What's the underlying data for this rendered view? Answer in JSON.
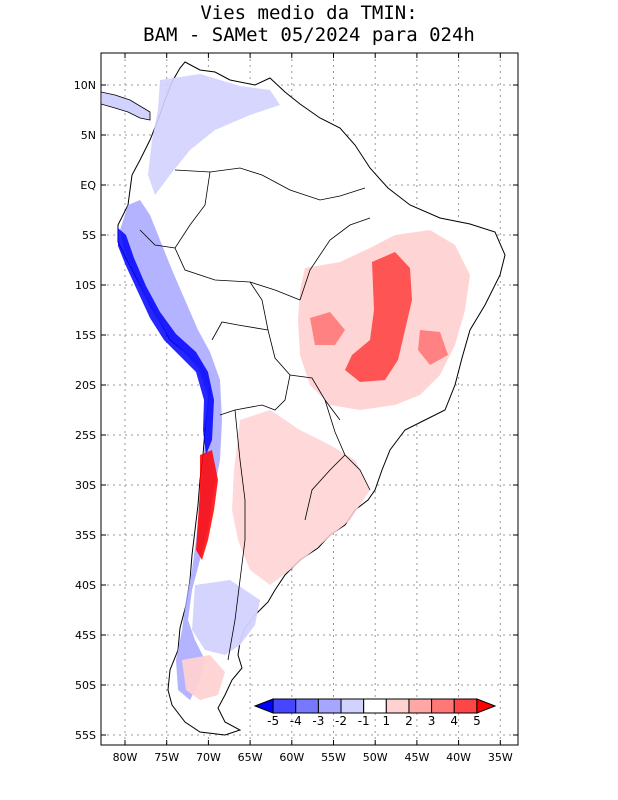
{
  "title": {
    "line1": "Vies medio da TMIN:",
    "line2": "BAM - SAMet 05/2024  para 024h"
  },
  "latitude_ticks": [
    "10N",
    "5N",
    "EQ",
    "5S",
    "10S",
    "15S",
    "20S",
    "25S",
    "30S",
    "35S",
    "40S",
    "45S",
    "50S",
    "55S"
  ],
  "longitude_ticks": [
    "80W",
    "75W",
    "70W",
    "65W",
    "60W",
    "55W",
    "50W",
    "45W",
    "40W",
    "35W"
  ],
  "colorbar": {
    "labels": [
      "-5",
      "-4",
      "-3",
      "-2",
      "-1",
      "1",
      "2",
      "3",
      "4",
      "5"
    ],
    "colors": [
      "#0000ff",
      "#4646ff",
      "#7878ff",
      "#a6a6ff",
      "#d2d2ff",
      "#ffffff",
      "#ffd2d2",
      "#ffa6a6",
      "#ff7878",
      "#ff4646",
      "#ff0000"
    ]
  },
  "map_colors": {
    "land": "#ffffff",
    "coast": "#000000",
    "grid": "#999999"
  }
}
